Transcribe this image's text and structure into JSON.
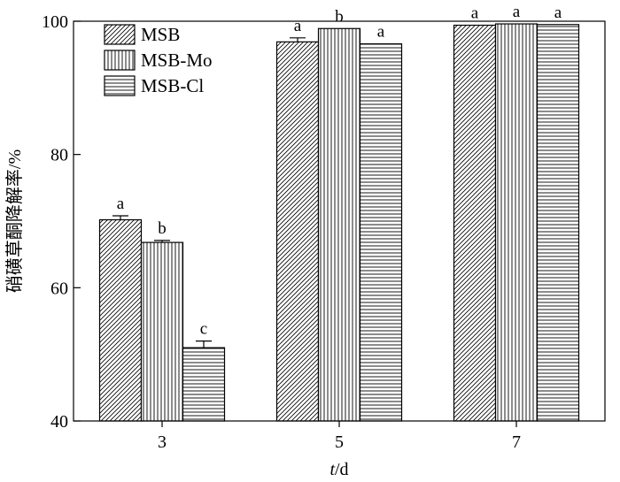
{
  "chart_data": {
    "type": "bar",
    "categories": [
      "3",
      "5",
      "7"
    ],
    "series": [
      {
        "name": "MSB",
        "pattern": "diagonal",
        "values": [
          70.2,
          96.9,
          99.4
        ],
        "errors": [
          0.6,
          0.6,
          0.0
        ],
        "letters": [
          "a",
          "a",
          "a"
        ]
      },
      {
        "name": "MSB-Mo",
        "pattern": "vertical",
        "values": [
          66.8,
          98.9,
          99.6
        ],
        "errors": [
          0.3,
          0.0,
          0.0
        ],
        "letters": [
          "b",
          "b",
          "a"
        ]
      },
      {
        "name": "MSB-Cl",
        "pattern": "horizontal",
        "values": [
          51.0,
          96.6,
          99.5
        ],
        "errors": [
          1.0,
          0.0,
          0.0
        ],
        "letters": [
          "c",
          "a",
          "a"
        ]
      }
    ],
    "ylabel": "硝磺草酮降解率/%",
    "xlabel_italic": "t",
    "xlabel_rest": "/d",
    "ylim": [
      40,
      100
    ],
    "yticks": [
      40,
      60,
      80,
      100
    ],
    "grid": false,
    "legend_position": "top-left",
    "colors": {
      "stroke": "#000000",
      "background": "#ffffff"
    }
  }
}
